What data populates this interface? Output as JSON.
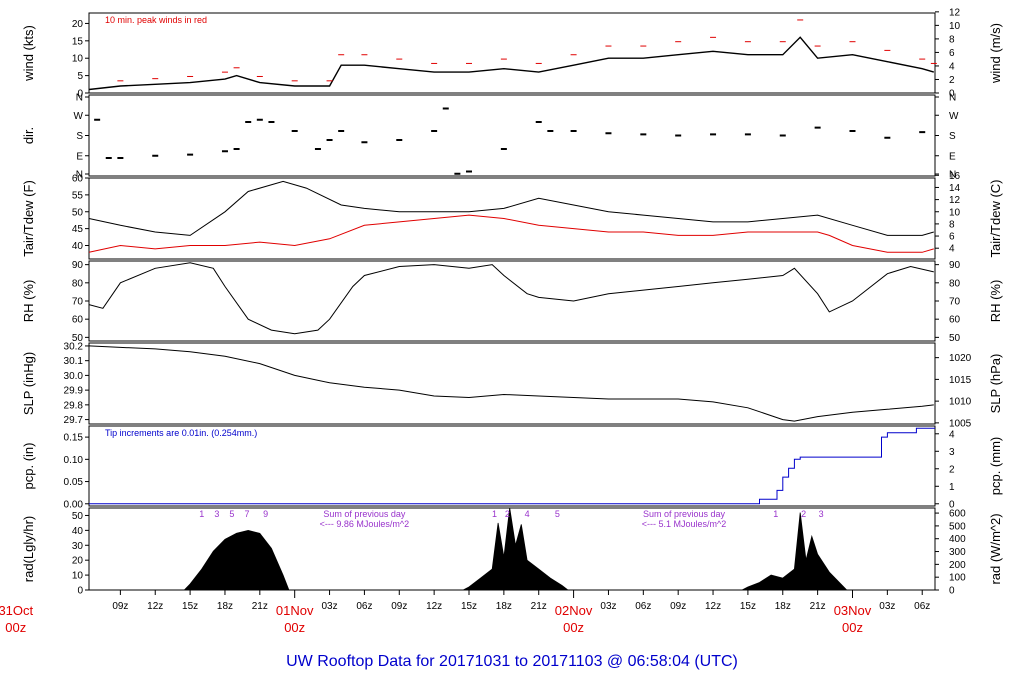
{
  "title": "UW Rooftop Data for 20171031  to  20171103 @ 06:58:04  (UTC)",
  "colors": {
    "primary": "#000000",
    "peak": "#e00000",
    "dew": "#e00000",
    "precip": "#0000cc",
    "note": "#9933cc",
    "title": "#0000cc"
  },
  "x_axis": {
    "start_hour": 6.3,
    "end_hour": 79.1,
    "hour_labels": [
      {
        "h": 9,
        "label": "09z"
      },
      {
        "h": 12,
        "label": "12z"
      },
      {
        "h": 15,
        "label": "15z"
      },
      {
        "h": 18,
        "label": "18z"
      },
      {
        "h": 21,
        "label": "21z"
      },
      {
        "h": 27,
        "label": "03z"
      },
      {
        "h": 30,
        "label": "06z"
      },
      {
        "h": 33,
        "label": "09z"
      },
      {
        "h": 36,
        "label": "12z"
      },
      {
        "h": 39,
        "label": "15z"
      },
      {
        "h": 42,
        "label": "18z"
      },
      {
        "h": 45,
        "label": "21z"
      },
      {
        "h": 51,
        "label": "03z"
      },
      {
        "h": 54,
        "label": "06z"
      },
      {
        "h": 57,
        "label": "09z"
      },
      {
        "h": 60,
        "label": "12z"
      },
      {
        "h": 63,
        "label": "15z"
      },
      {
        "h": 66,
        "label": "18z"
      },
      {
        "h": 69,
        "label": "21z"
      },
      {
        "h": 75,
        "label": "03z"
      },
      {
        "h": 78,
        "label": "06z"
      }
    ],
    "day_labels": [
      {
        "h": 0,
        "day": "31Oct",
        "time": "00z"
      },
      {
        "h": 24,
        "day": "01Nov",
        "time": "00z"
      },
      {
        "h": 48,
        "day": "02Nov",
        "time": "00z"
      },
      {
        "h": 72,
        "day": "03Nov",
        "time": "00z"
      }
    ]
  },
  "chart_data": [
    {
      "type": "line",
      "id": "wind",
      "ylabel_left": "wind (kts)",
      "ylabel_right": "wind (m/s)",
      "ylim": [
        0,
        23
      ],
      "left_ticks": [
        0,
        5,
        10,
        15,
        20
      ],
      "right_ticks": [
        0,
        2,
        4,
        6,
        8,
        10,
        12
      ],
      "annotation": "10 min. peak winds in red",
      "series": [
        {
          "name": "",
          "x": [
            6.3,
            9,
            12,
            15,
            18,
            19,
            21,
            24,
            27,
            28,
            30,
            33,
            36,
            39,
            42,
            45,
            48,
            51,
            54,
            57,
            60,
            63,
            66,
            67.5,
            69,
            72,
            75,
            78,
            79
          ],
          "y": [
            1,
            2,
            2.5,
            3,
            4,
            5,
            3,
            2,
            2,
            8,
            8,
            7,
            6,
            6,
            7,
            6,
            8,
            10,
            10,
            11,
            12,
            11,
            11,
            16,
            10,
            11,
            9,
            7,
            6
          ]
        }
      ]
    },
    {
      "type": "scatter",
      "id": "dir",
      "ylabel_left": "dir.",
      "ylim": [
        0,
        360
      ],
      "left_ticks": [
        "N",
        "E",
        "S",
        "W",
        "N"
      ],
      "right_ticks": [
        "N",
        "E",
        "S",
        "W",
        "N"
      ],
      "series": [
        {
          "name": "",
          "x": [
            7,
            8,
            9,
            12,
            15,
            18,
            19,
            20,
            21,
            22,
            24,
            26,
            27,
            28,
            30,
            33,
            36,
            37,
            38,
            39,
            42,
            45,
            46,
            48,
            51,
            54,
            57,
            60,
            63,
            66,
            69,
            72,
            75,
            78
          ],
          "y": [
            250,
            80,
            80,
            90,
            95,
            110,
            120,
            240,
            250,
            240,
            200,
            120,
            160,
            200,
            150,
            160,
            200,
            300,
            10,
            20,
            120,
            240,
            200,
            200,
            190,
            185,
            180,
            185,
            185,
            180,
            215,
            200,
            170,
            195
          ]
        }
      ]
    },
    {
      "type": "line",
      "id": "temp",
      "ylabel_left": "Tair/Tdew (F)",
      "ylabel_right": "Tair/Tdew (C)",
      "ylim": [
        36,
        60
      ],
      "left_ticks": [
        40,
        45,
        50,
        55,
        60
      ],
      "right_ticks": [
        4,
        6,
        8,
        10,
        12,
        14,
        16
      ],
      "series": [
        {
          "name": "",
          "x": [
            6.3,
            9,
            12,
            15,
            18,
            20,
            23,
            25,
            28,
            30,
            33,
            36,
            39,
            42,
            45,
            48,
            51,
            54,
            57,
            60,
            63,
            66,
            69,
            72,
            75,
            78,
            79
          ],
          "y": [
            48,
            46,
            44,
            43,
            50,
            56,
            59,
            57,
            52,
            51,
            50,
            50,
            50,
            51,
            54,
            52,
            50,
            49,
            48,
            47,
            47,
            48,
            49,
            46,
            43,
            43,
            44
          ]
        },
        {
          "name": "",
          "x": [
            6.3,
            9,
            12,
            15,
            18,
            21,
            24,
            27,
            30,
            33,
            36,
            39,
            42,
            45,
            48,
            51,
            54,
            57,
            60,
            63,
            66,
            69,
            70,
            72,
            75,
            78,
            79
          ],
          "y": [
            38,
            40,
            39,
            40,
            40,
            41,
            40,
            42,
            46,
            47,
            48,
            49,
            48,
            46,
            45,
            44,
            44,
            43,
            43,
            44,
            44,
            44,
            43,
            40,
            38,
            38,
            39
          ]
        }
      ]
    },
    {
      "type": "line",
      "id": "rh",
      "ylabel_left": "RH (%)",
      "ylabel_right": "RH (%)",
      "ylim": [
        48,
        92
      ],
      "left_ticks": [
        50,
        60,
        70,
        80,
        90
      ],
      "right_ticks": [
        50,
        60,
        70,
        80,
        90
      ],
      "series": [
        {
          "name": "",
          "x": [
            6.3,
            7.5,
            9,
            12,
            15,
            17,
            18,
            20,
            22,
            24,
            26,
            27,
            29,
            30,
            33,
            36,
            39,
            41,
            42,
            44,
            45,
            48,
            51,
            54,
            57,
            60,
            63,
            66,
            67,
            69,
            70,
            72,
            75,
            77,
            79
          ],
          "y": [
            68,
            66,
            80,
            88,
            91,
            88,
            78,
            60,
            54,
            52,
            54,
            60,
            78,
            84,
            89,
            90,
            88,
            90,
            84,
            74,
            72,
            70,
            74,
            76,
            78,
            80,
            82,
            84,
            88,
            74,
            64,
            70,
            85,
            89,
            86
          ]
        }
      ]
    },
    {
      "type": "line",
      "id": "slp",
      "ylabel_left": "SLP (inHg)",
      "ylabel_right": "SLP (hPa)",
      "ylim": [
        29.67,
        30.22
      ],
      "left_ticks": [
        29.7,
        29.8,
        29.9,
        30.0,
        30.1,
        30.2
      ],
      "right_ticks": [
        1005,
        1010,
        1015,
        1020
      ],
      "series": [
        {
          "name": "",
          "x": [
            6.3,
            9,
            12,
            15,
            18,
            21,
            24,
            27,
            30,
            33,
            36,
            39,
            42,
            45,
            48,
            51,
            54,
            57,
            60,
            63,
            66,
            67,
            69,
            72,
            75,
            78,
            79
          ],
          "y": [
            30.2,
            30.19,
            30.18,
            30.16,
            30.13,
            30.08,
            30.0,
            29.95,
            29.92,
            29.9,
            29.86,
            29.85,
            29.87,
            29.86,
            29.85,
            29.84,
            29.84,
            29.84,
            29.82,
            29.78,
            29.7,
            29.69,
            29.72,
            29.75,
            29.77,
            29.79,
            29.8
          ]
        }
      ]
    },
    {
      "type": "line",
      "id": "pcp",
      "ylabel_left": "pcp. (in)",
      "ylabel_right": "pcp. (mm)",
      "ylim": [
        -0.005,
        0.175
      ],
      "left_ticks": [
        0.0,
        0.05,
        0.1,
        0.15
      ],
      "right_ticks": [
        0,
        1,
        2,
        3,
        4
      ],
      "annotation": "Tip increments are 0.01in. (0.254mm.)",
      "series": [
        {
          "name": "",
          "x": [
            6.3,
            64,
            64,
            65.5,
            65.5,
            66.0,
            66.0,
            66.5,
            66.5,
            67.0,
            67.0,
            67.5,
            67.5,
            74.5,
            74.5,
            75.0,
            75.0,
            77.5,
            77.5,
            79.1
          ],
          "y": [
            0.0,
            0.0,
            0.01,
            0.01,
            0.03,
            0.03,
            0.06,
            0.06,
            0.08,
            0.08,
            0.1,
            0.1,
            0.105,
            0.105,
            0.15,
            0.15,
            0.16,
            0.16,
            0.17,
            0.17
          ]
        }
      ]
    },
    {
      "type": "area",
      "id": "rad",
      "ylabel_left": "rad(Lgly/hr)",
      "ylabel_right": "rad (W/m^2)",
      "ylim": [
        0,
        55
      ],
      "left_ticks": [
        0,
        10,
        20,
        30,
        40,
        50
      ],
      "right_ticks": [
        0,
        100,
        200,
        300,
        400,
        500,
        600
      ],
      "notes": [
        {
          "h": 30,
          "line1": "Sum of previous day",
          "line2": "<--- 9.86 MJoules/m^2"
        },
        {
          "h": 57.5,
          "line1": "Sum of previous day",
          "line2": "<--- 5.1 MJoules/m^2"
        }
      ],
      "hour_marks": [
        {
          "h": 16,
          "label": "1"
        },
        {
          "h": 17.3,
          "label": "3"
        },
        {
          "h": 18.6,
          "label": "5"
        },
        {
          "h": 19.9,
          "label": "7"
        },
        {
          "h": 21.5,
          "label": "9"
        },
        {
          "h": 41.2,
          "label": "1"
        },
        {
          "h": 42.3,
          "label": "2"
        },
        {
          "h": 44.0,
          "label": "4"
        },
        {
          "h": 46.6,
          "label": "5"
        },
        {
          "h": 65.4,
          "label": "1"
        },
        {
          "h": 67.8,
          "label": "2"
        },
        {
          "h": 69.3,
          "label": "3"
        }
      ],
      "series": [
        {
          "name": "",
          "x": [
            14.5,
            15,
            16,
            17,
            18,
            19,
            20,
            21,
            22,
            23,
            23.5,
            38.5,
            39,
            40,
            41,
            41.5,
            42,
            42.5,
            43,
            43.5,
            44,
            45,
            46,
            47,
            47.5,
            62.5,
            63,
            64,
            65,
            66,
            67,
            67.5,
            68,
            68.5,
            69,
            70,
            71,
            71.5
          ],
          "y": [
            0,
            4,
            14,
            26,
            34,
            38,
            40,
            38,
            28,
            10,
            0,
            0,
            2,
            8,
            14,
            45,
            22,
            55,
            30,
            44,
            20,
            14,
            8,
            3,
            0,
            0,
            2,
            5,
            10,
            8,
            14,
            52,
            20,
            36,
            24,
            12,
            4,
            0
          ]
        }
      ]
    }
  ]
}
